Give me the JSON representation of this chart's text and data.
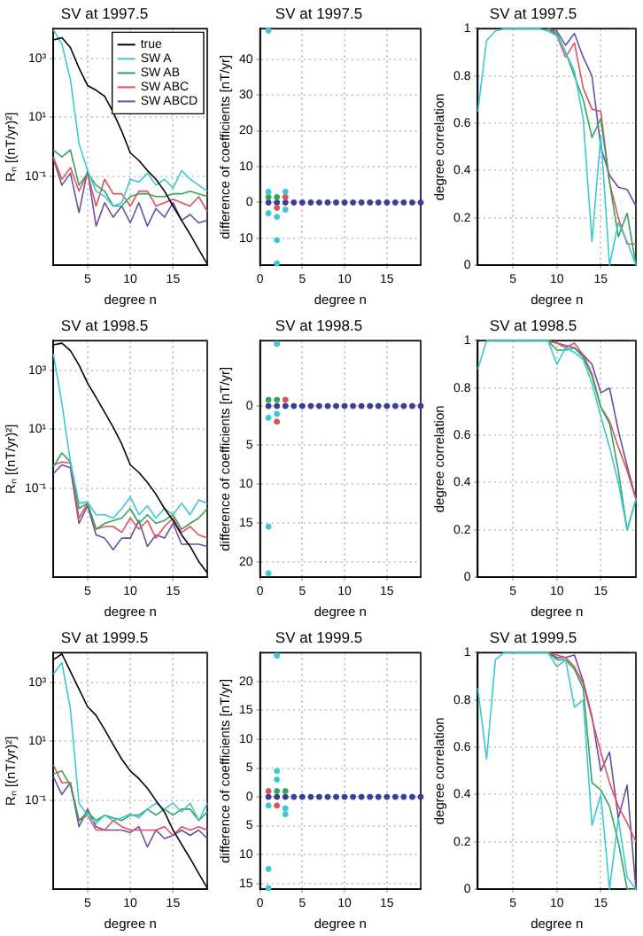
{
  "chart_data": [
    {
      "type": "line",
      "title": "SV at 1997.5",
      "xlabel": "degree n",
      "ylabel": "Rₙ [(nT/yr)²]",
      "log": true,
      "grid": true,
      "legend": "top right",
      "x": [
        1,
        2,
        3,
        4,
        5,
        6,
        7,
        8,
        9,
        10,
        11,
        12,
        13,
        14,
        15,
        16,
        17,
        18,
        19
      ],
      "xlim": [
        1,
        19
      ],
      "xticks": [
        5,
        10,
        15
      ],
      "ylim": [
        0.0001,
        10000
      ],
      "yticks": [
        {
          "value": 0.1,
          "label": "10⁻¹"
        },
        {
          "value": 10,
          "label": "10¹"
        },
        {
          "value": 1000,
          "label": "10³"
        }
      ],
      "series": [
        {
          "name": "true",
          "color": "#000000",
          "values": [
            4200,
            5000,
            2300,
            470,
            120,
            83,
            52,
            15,
            3.4,
            0.63,
            0.35,
            0.16,
            0.081,
            0.032,
            0.01,
            0.0033,
            0.0011,
            0.00034,
            0.00011
          ]
        },
        {
          "name": "SW A",
          "color": "#3cc8d2",
          "values": [
            9100,
            3000,
            190,
            1.3,
            0.16,
            0.032,
            0.021,
            0.01,
            0.013,
            0.081,
            0.064,
            0.13,
            0.051,
            0.081,
            0.041,
            0.16,
            0.081,
            0.051,
            0.032
          ]
        },
        {
          "name": "SW AB",
          "color": "#33a55a",
          "values": [
            0.79,
            0.46,
            0.79,
            0.051,
            0.13,
            0.051,
            0.032,
            0.01,
            0.01,
            0.021,
            0.026,
            0.026,
            0.021,
            0.021,
            0.026,
            0.026,
            0.032,
            0.026,
            0.021
          ]
        },
        {
          "name": "SW ABC",
          "color": "#e0505c",
          "values": [
            0.46,
            0.081,
            0.2,
            0.032,
            0.13,
            0.01,
            0.081,
            0.026,
            0.026,
            0.01,
            0.032,
            0.032,
            0.01,
            0.013,
            0.017,
            0.013,
            0.01,
            0.021,
            0.0066
          ]
        },
        {
          "name": "SW ABCD",
          "color": "#6a4ea0",
          "values": [
            0.4,
            0.051,
            0.13,
            0.006,
            0.16,
            0.0021,
            0.013,
            0.0042,
            0.01,
            0.0027,
            0.013,
            0.0021,
            0.0083,
            0.0042,
            0.013,
            0.0033,
            0.0052,
            0.0027,
            0.0033
          ]
        }
      ]
    },
    {
      "type": "scatter",
      "title": "SV at 1997.5",
      "xlabel": "degree n",
      "ylabel": "difference of coefficients [nT/yr]",
      "grid": true,
      "marker": "circle",
      "xlim": [
        0,
        19
      ],
      "xticks": [
        0,
        5,
        10,
        15
      ],
      "ylim": [
        -17.5,
        48.5
      ],
      "yticks": [
        {
          "value": -10,
          "label": "10"
        },
        0,
        10,
        20,
        30,
        40
      ],
      "series": [
        {
          "color": "#3cc8d2",
          "x": [
            1,
            1,
            1,
            2,
            2,
            2,
            3,
            3
          ],
          "values": [
            48,
            3,
            -3,
            -4,
            -10.5,
            -17,
            3,
            -2
          ]
        },
        {
          "color": "#33a55a",
          "x": [
            1,
            2
          ],
          "values": [
            1.5,
            1.5
          ]
        },
        {
          "color": "#e0505c",
          "x": [
            2,
            3
          ],
          "values": [
            -1.5,
            1.5
          ]
        },
        {
          "color": "#3c3c9a",
          "x": [
            1,
            2,
            3,
            4,
            5,
            6,
            7,
            8,
            9,
            10,
            11,
            12,
            13,
            14,
            15,
            16,
            17,
            18,
            19
          ],
          "values": [
            0,
            0,
            0,
            0,
            0,
            0,
            0,
            0,
            0,
            0,
            0,
            0,
            0,
            0,
            0,
            0,
            0,
            0,
            0
          ]
        }
      ]
    },
    {
      "type": "line",
      "title": "SV at 1997.5",
      "xlabel": "degree n",
      "ylabel": "degree correlation",
      "grid": true,
      "x": [
        1,
        2,
        3,
        4,
        5,
        6,
        7,
        8,
        9,
        10,
        11,
        12,
        13,
        14,
        15,
        16,
        17,
        18,
        19
      ],
      "xlim": [
        1,
        19
      ],
      "xticks": [
        5,
        10,
        15
      ],
      "ylim": [
        0,
        1
      ],
      "yticks": [
        0,
        0.2,
        0.4,
        0.6,
        0.8,
        1
      ],
      "series": [
        {
          "color": "#3cc8d2",
          "values": [
            0.65,
            0.95,
            0.99,
            1,
            1,
            1,
            1,
            1,
            0.99,
            0.97,
            0.9,
            0.82,
            0.62,
            0.1,
            0.55,
            0,
            0.18,
            0.1,
            0
          ]
        },
        {
          "color": "#33a55a",
          "values": [
            null,
            null,
            null,
            null,
            null,
            null,
            null,
            null,
            1,
            0.98,
            0.9,
            0.8,
            0.7,
            0.54,
            0.62,
            0.35,
            0.12,
            0.22,
            0
          ]
        },
        {
          "color": "#e0505c",
          "values": [
            null,
            null,
            null,
            null,
            null,
            null,
            null,
            null,
            1,
            0.97,
            0.88,
            0.94,
            0.75,
            0.66,
            0.65,
            0.35,
            0.2,
            0.09,
            0.09
          ]
        },
        {
          "color": "#6a4ea0",
          "values": [
            null,
            null,
            null,
            null,
            null,
            null,
            null,
            null,
            1,
            0.99,
            0.93,
            0.98,
            0.88,
            0.8,
            0.5,
            0.38,
            0.33,
            0.32,
            0.25
          ]
        }
      ]
    },
    {
      "type": "line",
      "title": "SV at 1998.5",
      "xlabel": "degree n",
      "ylabel": "Rₙ [(nT/yr)²]",
      "log": true,
      "grid": true,
      "x": [
        1,
        2,
        3,
        4,
        5,
        6,
        7,
        8,
        9,
        10,
        11,
        12,
        13,
        14,
        15,
        16,
        17,
        18,
        19
      ],
      "xlim": [
        1,
        19
      ],
      "xticks": [
        5,
        10,
        15
      ],
      "ylim": [
        0.0001,
        10000
      ],
      "yticks": [
        {
          "value": 0.1,
          "label": "10⁻¹"
        },
        {
          "value": 10,
          "label": "10¹"
        },
        {
          "value": 1000,
          "label": "10³"
        }
      ],
      "series": [
        {
          "color": "#000000",
          "values": [
            7300,
            8300,
            4600,
            1500,
            370,
            120,
            38,
            12,
            3.2,
            0.63,
            0.35,
            0.16,
            0.064,
            0.021,
            0.0083,
            0.0027,
            0.0011,
            0.00034,
            0.00014
          ]
        },
        {
          "color": "#3cc8d2",
          "values": [
            3600,
            76,
            0.79,
            0.032,
            0.035,
            0.013,
            0.013,
            0.01,
            0.021,
            0.051,
            0.013,
            0.026,
            0.01,
            0.021,
            0.013,
            0.032,
            0.013,
            0.041,
            0.032
          ]
        },
        {
          "color": "#33a55a",
          "values": [
            0.55,
            1.6,
            0.79,
            0.021,
            0.032,
            0.0042,
            0.0066,
            0.0083,
            0.01,
            0.021,
            0.0066,
            0.013,
            0.0066,
            0.0083,
            0.013,
            0.0042,
            0.0066,
            0.01,
            0.021
          ]
        },
        {
          "color": "#e0505c",
          "values": [
            0.63,
            0.79,
            0.72,
            0.01,
            0.032,
            0.0042,
            0.0052,
            0.0052,
            0.0033,
            0.01,
            0.0042,
            0.0083,
            0.0021,
            0.0052,
            0.01,
            0.0033,
            0.0052,
            0.0027,
            0.0021
          ]
        },
        {
          "color": "#6a4ea0",
          "values": [
            0.32,
            0.63,
            0.5,
            0.0066,
            0.026,
            0.0027,
            0.0021,
            0.00085,
            0.0021,
            0.0021,
            0.0083,
            0.0011,
            0.0027,
            0.0021,
            0.0066,
            0.0013,
            0.0013,
            0.0013,
            0.0011
          ]
        }
      ]
    },
    {
      "type": "scatter",
      "title": "SV at 1998.5",
      "xlabel": "degree n",
      "ylabel": "difference of coefficients [nT/yr]",
      "grid": true,
      "marker": "circle",
      "xlim": [
        0,
        19
      ],
      "xticks": [
        0,
        5,
        10,
        15
      ],
      "ylim": [
        -22,
        8.4
      ],
      "yticks": [
        {
          "value": -20,
          "label": "20"
        },
        {
          "value": -15,
          "label": "15"
        },
        {
          "value": -10,
          "label": "10"
        },
        {
          "value": -5,
          "label": "5"
        },
        0
      ],
      "series": [
        {
          "color": "#3cc8d2",
          "x": [
            1,
            1,
            1,
            2,
            2
          ],
          "values": [
            -1.5,
            -15.5,
            -21.5,
            8,
            -1
          ]
        },
        {
          "color": "#33a55a",
          "x": [
            1,
            2
          ],
          "values": [
            0.8,
            0.8
          ]
        },
        {
          "color": "#e0505c",
          "x": [
            2,
            3
          ],
          "values": [
            -2,
            0.8
          ]
        },
        {
          "color": "#3c3c9a",
          "x": [
            1,
            2,
            3,
            4,
            5,
            6,
            7,
            8,
            9,
            10,
            11,
            12,
            13,
            14,
            15,
            16,
            17,
            18,
            19
          ],
          "values": [
            0,
            0,
            0,
            0,
            0,
            0,
            0,
            0,
            0,
            0,
            0,
            0,
            0,
            0,
            0,
            0,
            0,
            0,
            0
          ]
        }
      ]
    },
    {
      "type": "line",
      "title": "SV at 1998.5",
      "xlabel": "degree n",
      "ylabel": "degree correlation",
      "grid": true,
      "x": [
        1,
        2,
        3,
        4,
        5,
        6,
        7,
        8,
        9,
        10,
        11,
        12,
        13,
        14,
        15,
        16,
        17,
        18,
        19
      ],
      "xlim": [
        1,
        19
      ],
      "xticks": [
        5,
        10,
        15
      ],
      "ylim": [
        0,
        1
      ],
      "yticks": [
        0,
        0.2,
        0.4,
        0.6,
        0.8,
        1
      ],
      "series": [
        {
          "color": "#3cc8d2",
          "values": [
            0.88,
            1,
            1,
            1,
            1,
            1,
            1,
            1,
            1,
            0.9,
            0.97,
            0.95,
            0.92,
            0.82,
            0.68,
            0.55,
            0.4,
            0.2,
            0.33
          ]
        },
        {
          "color": "#33a55a",
          "values": [
            null,
            null,
            null,
            null,
            null,
            null,
            null,
            null,
            1,
            0.96,
            0.96,
            0.97,
            0.93,
            0.85,
            0.72,
            0.65,
            0.45,
            0.2,
            0.33
          ]
        },
        {
          "color": "#e0505c",
          "values": [
            null,
            null,
            null,
            null,
            null,
            null,
            null,
            null,
            1,
            0.99,
            0.97,
            0.99,
            0.94,
            0.86,
            0.72,
            0.66,
            0.55,
            0.45,
            0.33
          ]
        },
        {
          "color": "#6a4ea0",
          "values": [
            null,
            null,
            null,
            null,
            null,
            null,
            null,
            null,
            1,
            0.99,
            0.98,
            0.97,
            0.94,
            0.9,
            0.78,
            0.8,
            0.62,
            0.47,
            0.33
          ]
        }
      ]
    },
    {
      "type": "line",
      "title": "SV at 1999.5",
      "xlabel": "degree n",
      "ylabel": "Rₙ [(nT/yr)²]",
      "log": true,
      "grid": true,
      "x": [
        1,
        2,
        3,
        4,
        5,
        6,
        7,
        8,
        9,
        10,
        11,
        12,
        13,
        14,
        15,
        16,
        17,
        18,
        19
      ],
      "xlim": [
        1,
        19
      ],
      "xticks": [
        5,
        10,
        15
      ],
      "ylim": [
        0.0001,
        10000
      ],
      "yticks": [
        {
          "value": 0.1,
          "label": "10⁻¹"
        },
        {
          "value": 10,
          "label": "10¹"
        },
        {
          "value": 1000,
          "label": "10³"
        }
      ],
      "series": [
        {
          "color": "#000000",
          "values": [
            5800,
            9100,
            2300,
            590,
            150,
            76,
            25,
            7.8,
            2.5,
            1,
            0.55,
            0.26,
            0.1,
            0.041,
            0.01,
            0.0033,
            0.0011,
            0.00034,
            0.00011
          ]
        },
        {
          "color": "#3cc8d2",
          "values": [
            1900,
            4600,
            120,
            0.081,
            0.032,
            0.017,
            0.032,
            0.021,
            0.026,
            0.035,
            0.026,
            0.051,
            0.081,
            0.051,
            0.081,
            0.041,
            0.081,
            0.021,
            0.081
          ]
        },
        {
          "color": "#33a55a",
          "values": [
            0.79,
            1,
            0.32,
            0.021,
            0.041,
            0.021,
            0.032,
            0.026,
            0.021,
            0.032,
            0.032,
            0.051,
            0.032,
            0.051,
            0.032,
            0.051,
            0.051,
            0.021,
            0.041
          ]
        },
        {
          "color": "#e0505c",
          "values": [
            1.6,
            0.4,
            0.4,
            0.021,
            0.032,
            0.01,
            0.01,
            0.021,
            0.013,
            0.01,
            0.01,
            0.01,
            0.01,
            0.013,
            0.0066,
            0.013,
            0.01,
            0.013,
            0.01
          ]
        },
        {
          "color": "#6a4ea0",
          "values": [
            0.63,
            0.16,
            0.4,
            0.013,
            0.051,
            0.013,
            0.01,
            0.01,
            0.01,
            0.0083,
            0.013,
            0.0027,
            0.01,
            0.0052,
            0.0066,
            0.01,
            0.0066,
            0.01,
            0.0052
          ]
        }
      ]
    },
    {
      "type": "scatter",
      "title": "SV at 1999.5",
      "xlabel": "degree n",
      "ylabel": "difference of coefficients [nT/yr]",
      "grid": true,
      "marker": "circle",
      "xlim": [
        0,
        19
      ],
      "xticks": [
        0,
        5,
        10,
        15
      ],
      "ylim": [
        -16,
        25
      ],
      "yticks": [
        {
          "value": -15,
          "label": "15"
        },
        {
          "value": -10,
          "label": "10"
        },
        {
          "value": -5,
          "label": "5"
        },
        0,
        5,
        10,
        15,
        20
      ],
      "series": [
        {
          "color": "#3cc8d2",
          "x": [
            1,
            1,
            1,
            2,
            2,
            2,
            3,
            3
          ],
          "values": [
            -12.5,
            -15.8,
            -1.5,
            24.5,
            4.5,
            3,
            -3,
            -2
          ]
        },
        {
          "color": "#33a55a",
          "x": [
            2,
            3
          ],
          "values": [
            1,
            1
          ]
        },
        {
          "color": "#e0505c",
          "x": [
            1,
            2
          ],
          "values": [
            1,
            -1.5
          ]
        },
        {
          "color": "#3c3c9a",
          "x": [
            1,
            2,
            3,
            4,
            5,
            6,
            7,
            8,
            9,
            10,
            11,
            12,
            13,
            14,
            15,
            16,
            17,
            18,
            19
          ],
          "values": [
            0,
            0,
            0,
            0,
            0,
            0,
            0,
            0,
            0,
            0,
            0,
            0,
            0,
            0,
            0,
            0,
            0,
            0,
            0
          ]
        }
      ]
    },
    {
      "type": "line",
      "title": "SV at 1999.5",
      "xlabel": "degree n",
      "ylabel": "degree correlation",
      "grid": true,
      "x": [
        1,
        2,
        3,
        4,
        5,
        6,
        7,
        8,
        9,
        10,
        11,
        12,
        13,
        14,
        15,
        16,
        17,
        18,
        19
      ],
      "xlim": [
        1,
        19
      ],
      "xticks": [
        5,
        10,
        15
      ],
      "ylim": [
        0,
        1
      ],
      "yticks": [
        0,
        0.2,
        0.4,
        0.6,
        0.8,
        1
      ],
      "series": [
        {
          "color": "#3cc8d2",
          "values": [
            0.85,
            0.55,
            0.97,
            1,
            1,
            1,
            1,
            1,
            1,
            0.94,
            0.97,
            0.77,
            0.8,
            0.27,
            0.4,
            0,
            0.3,
            0.05,
            0
          ]
        },
        {
          "color": "#33a55a",
          "values": [
            null,
            null,
            null,
            null,
            null,
            null,
            null,
            null,
            1,
            0.97,
            0.97,
            0.93,
            0.85,
            0.45,
            0.42,
            0.35,
            0.2,
            0,
            0
          ]
        },
        {
          "color": "#e0505c",
          "values": [
            null,
            null,
            null,
            null,
            null,
            null,
            null,
            null,
            1,
            0.99,
            0.98,
            0.94,
            0.87,
            0.72,
            0.58,
            0.45,
            0.35,
            0.28,
            0.2
          ]
        },
        {
          "color": "#6a4ea0",
          "values": [
            null,
            null,
            null,
            null,
            null,
            null,
            null,
            null,
            1,
            0.98,
            0.98,
            0.99,
            0.88,
            0.73,
            0.5,
            0.58,
            0.3,
            0.44,
            0
          ]
        }
      ]
    }
  ]
}
